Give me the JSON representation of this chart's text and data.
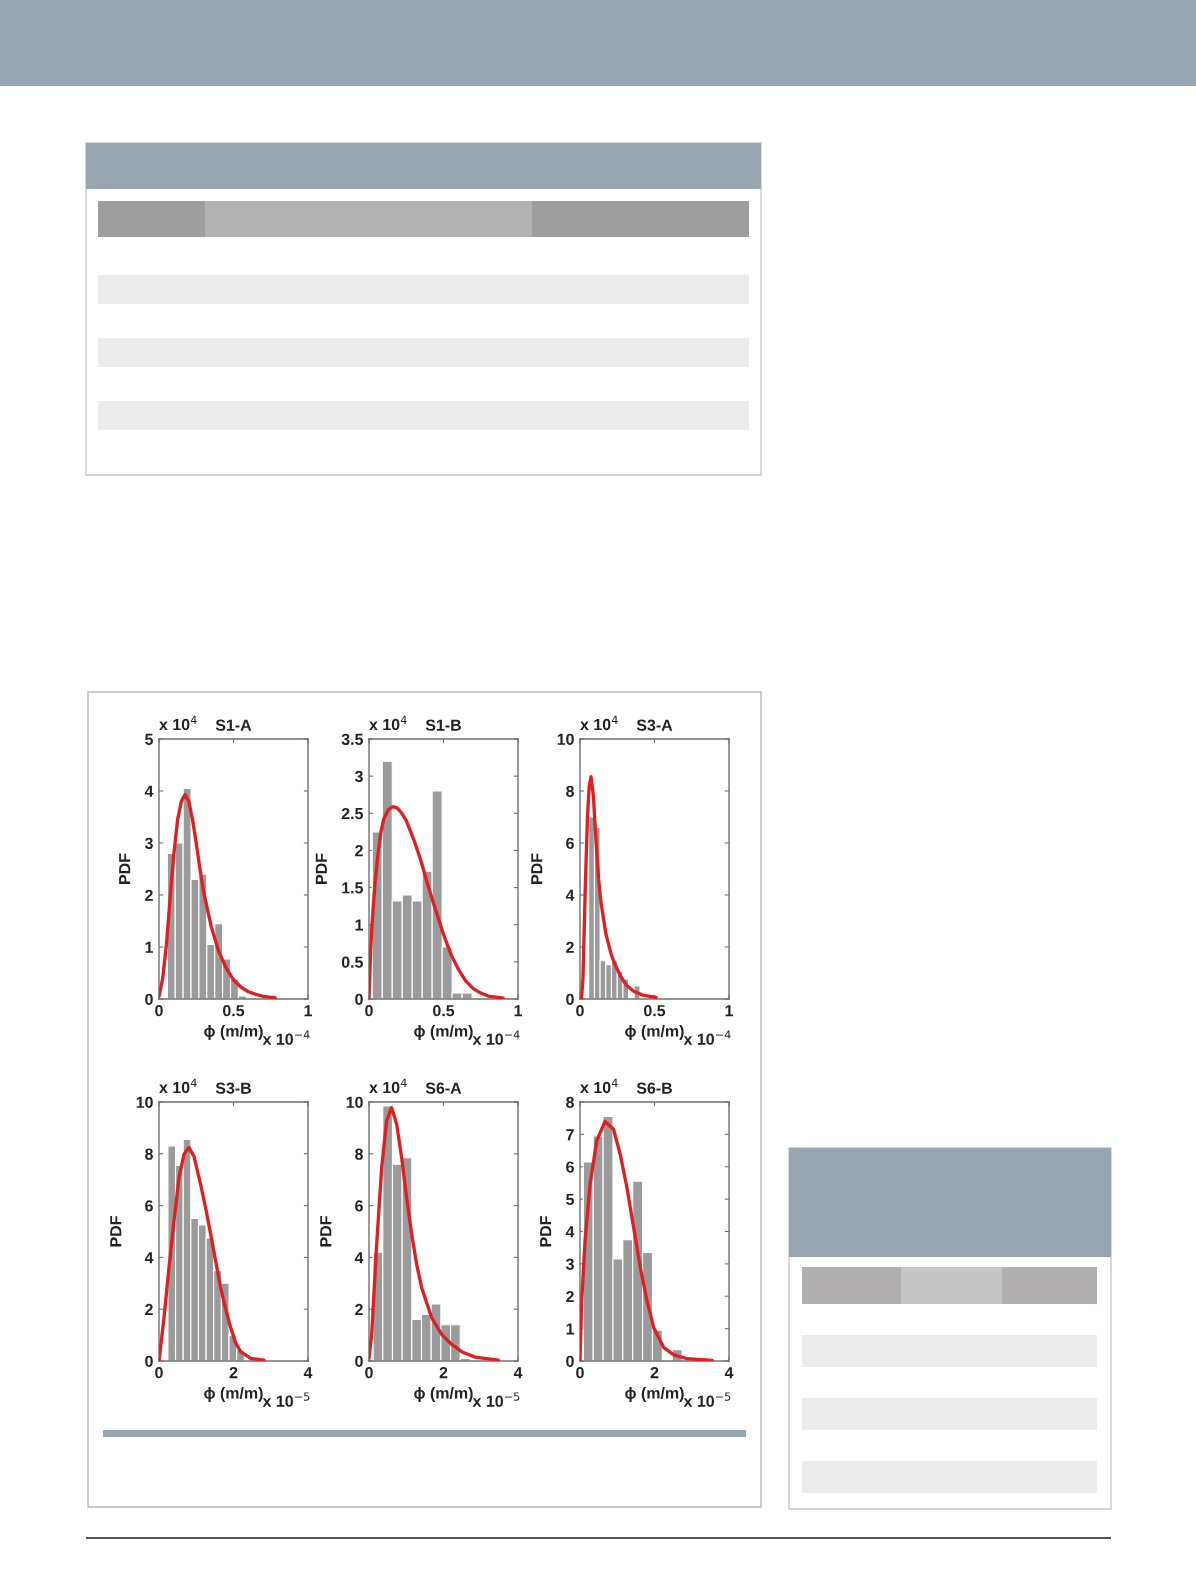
{
  "chart_data": [
    {
      "type": "histogram",
      "title": "S1-A",
      "xlabel": "ϕ (m/m)",
      "ylabel": "PDF",
      "annotations": [
        "x 10$^{4}$",
        "x 10$^{−4}$"
      ],
      "bins": [
        0.056,
        0.109,
        0.162,
        0.215,
        0.268,
        0.321,
        0.374,
        0.427,
        0.48,
        0.533,
        0.586
      ],
      "values": [
        2.8,
        3.0,
        4.05,
        2.3,
        2.4,
        1.05,
        1.45,
        0.77,
        0.38,
        0.06
      ],
      "color": "#9b9b9b",
      "series": [
        {
          "type": "line",
          "color": "#e02020",
          "x": [
            0,
            0.025,
            0.05,
            0.075,
            0.1,
            0.125,
            0.15,
            0.175,
            0.2,
            0.225,
            0.25,
            0.275,
            0.3,
            0.35,
            0.4,
            0.45,
            0.5,
            0.55,
            0.6,
            0.65,
            0.7,
            0.78
          ],
          "values": [
            0.05,
            0.4,
            1.05,
            1.95,
            2.8,
            3.45,
            3.8,
            3.93,
            3.8,
            3.45,
            3.0,
            2.5,
            2.05,
            1.4,
            0.92,
            0.6,
            0.37,
            0.23,
            0.14,
            0.09,
            0.05,
            0.02
          ]
        }
      ],
      "xlim": [
        0,
        1
      ],
      "xticks": [
        0,
        0.5,
        1
      ],
      "ylim": [
        0,
        5
      ],
      "yticks": [
        0,
        1,
        2,
        3,
        4,
        5
      ]
    },
    {
      "type": "histogram",
      "title": "S1-B",
      "xlabel": "ϕ (m/m)",
      "ylabel": "PDF",
      "annotations": [
        "x 10$^{4}$",
        "x 10$^{−4}$"
      ],
      "bins": [
        0.022,
        0.089,
        0.156,
        0.223,
        0.29,
        0.357,
        0.424,
        0.491,
        0.558,
        0.625,
        0.692
      ],
      "values": [
        2.25,
        3.2,
        1.32,
        1.4,
        1.32,
        1.72,
        2.8,
        0.7,
        0.08,
        0.08
      ],
      "color": "#9b9b9b",
      "series": [
        {
          "type": "line",
          "color": "#e02020",
          "x": [
            0,
            0.01,
            0.02,
            0.04,
            0.06,
            0.08,
            0.1,
            0.13,
            0.16,
            0.19,
            0.22,
            0.25,
            0.3,
            0.35,
            0.4,
            0.45,
            0.5,
            0.55,
            0.6,
            0.65,
            0.7,
            0.75,
            0.8,
            0.9
          ],
          "values": [
            0,
            0.6,
            1.0,
            1.55,
            1.95,
            2.25,
            2.43,
            2.55,
            2.59,
            2.57,
            2.5,
            2.4,
            2.15,
            1.85,
            1.5,
            1.18,
            0.87,
            0.6,
            0.4,
            0.24,
            0.14,
            0.08,
            0.04,
            0.01
          ]
        }
      ],
      "xlim": [
        0,
        1
      ],
      "xticks": [
        0,
        0.5,
        1
      ],
      "ylim": [
        0,
        3.5
      ],
      "yticks": [
        0,
        0.5,
        1,
        1.5,
        2,
        2.5,
        3,
        3.5
      ]
    },
    {
      "type": "histogram",
      "title": "S3-A",
      "xlabel": "ϕ (m/m)",
      "ylabel": "PDF",
      "annotations": [
        "x 10$^{4}$",
        "x 10$^{−4}$"
      ],
      "bins": [
        0.02,
        0.058,
        0.097,
        0.135,
        0.173,
        0.211,
        0.25,
        0.288,
        0.326,
        0.364,
        0.403
      ],
      "values": [
        null,
        7.0,
        6.6,
        1.47,
        1.32,
        1.47,
        1.05,
        0.77,
        0,
        0.5
      ],
      "color": "#9b9b9b",
      "series": [
        {
          "type": "line",
          "color": "#e02020",
          "x": [
            0.01,
            0.02,
            0.035,
            0.05,
            0.062,
            0.074,
            0.09,
            0.107,
            0.125,
            0.141,
            0.174,
            0.21,
            0.242,
            0.275,
            0.309,
            0.36,
            0.42,
            0.51
          ],
          "values": [
            0,
            0.8,
            4.2,
            7.0,
            8.2,
            8.55,
            7.8,
            6.1,
            4.6,
            3.7,
            2.5,
            1.7,
            1.24,
            0.85,
            0.54,
            0.3,
            0.15,
            0.06
          ]
        }
      ],
      "xlim": [
        0,
        1
      ],
      "xticks": [
        0,
        0.5,
        1
      ],
      "ylim": [
        0,
        10
      ],
      "yticks": [
        0,
        2,
        4,
        6,
        8,
        10
      ]
    },
    {
      "type": "histogram",
      "title": "S3-B",
      "xlabel": "ϕ (m/m)",
      "ylabel": "PDF",
      "annotations": [
        "x 10$^{4}$",
        "x 10$^{−5}$"
      ],
      "bins": [
        0.24,
        0.445,
        0.65,
        0.855,
        1.06,
        1.265,
        1.47,
        1.675,
        1.88,
        2.085,
        2.29
      ],
      "values": [
        8.3,
        7.55,
        8.55,
        5.5,
        5.25,
        4.75,
        3.5,
        3.0,
        1.0,
        0.4
      ],
      "color": "#9b9b9b",
      "series": [
        {
          "type": "line",
          "color": "#e02020",
          "x": [
            0,
            0.134,
            0.268,
            0.403,
            0.537,
            0.671,
            0.805,
            0.94,
            1.119,
            1.253,
            1.387,
            1.521,
            1.655,
            1.79,
            1.924,
            2.058,
            2.19,
            2.46,
            2.82
          ],
          "values": [
            0,
            1.67,
            3.6,
            5.4,
            7.08,
            7.98,
            8.24,
            7.9,
            6.8,
            5.9,
            4.9,
            3.86,
            2.83,
            2.0,
            1.29,
            0.7,
            0.36,
            0.1,
            0.03
          ]
        }
      ],
      "xlim": [
        0,
        4
      ],
      "xticks": [
        0,
        2,
        4
      ],
      "ylim": [
        0,
        10
      ],
      "yticks": [
        0,
        2,
        4,
        6,
        8,
        10
      ]
    },
    {
      "type": "histogram",
      "title": "S6-A",
      "xlabel": "ϕ (m/m)",
      "ylabel": "PDF",
      "annotations": [
        "x 10$^{4}$",
        "x 10$^{−5}$"
      ],
      "bins": [
        0.11,
        0.37,
        0.63,
        0.89,
        1.15,
        1.41,
        1.67,
        1.93,
        2.19,
        2.45,
        2.71
      ],
      "values": [
        4.2,
        9.85,
        7.6,
        7.85,
        1.6,
        1.8,
        2.2,
        1.4,
        1.4,
        0.1
      ],
      "color": "#9b9b9b",
      "series": [
        {
          "type": "line",
          "color": "#e02020",
          "x": [
            0,
            0.072,
            0.206,
            0.34,
            0.474,
            0.608,
            0.743,
            0.877,
            1.011,
            1.145,
            1.28,
            1.414,
            1.682,
            1.951,
            2.219,
            2.488,
            2.846,
            3.472
          ],
          "values": [
            0.1,
            1.03,
            4.5,
            7.46,
            9.27,
            9.78,
            9.14,
            7.85,
            6.3,
            4.9,
            3.73,
            2.83,
            1.67,
            1.03,
            0.64,
            0.36,
            0.15,
            0.03
          ]
        }
      ],
      "xlim": [
        0,
        4
      ],
      "xticks": [
        0,
        2,
        4
      ],
      "ylim": [
        0,
        10
      ],
      "yticks": [
        0,
        2,
        4,
        6,
        8,
        10
      ]
    },
    {
      "type": "histogram",
      "title": "S6-B",
      "xlabel": "ϕ (m/m)",
      "ylabel": "PDF",
      "annotations": [
        "x 10$^{4}$",
        "x 10$^{−5}$"
      ],
      "bins": [
        0.09,
        0.355,
        0.62,
        0.885,
        1.15,
        1.415,
        1.68,
        1.945,
        2.21,
        2.475,
        2.74
      ],
      "values": [
        6.15,
        6.95,
        7.55,
        3.15,
        3.75,
        5.55,
        3.35,
        0.95,
        0,
        0.35
      ],
      "color": "#9b9b9b",
      "series": [
        {
          "type": "line",
          "color": "#e02020",
          "x": [
            0,
            0.045,
            0.135,
            0.27,
            0.45,
            0.67,
            0.9,
            1.08,
            1.26,
            1.44,
            1.62,
            1.8,
            1.98,
            2.25,
            2.52,
            2.88,
            3.55
          ],
          "values": [
            0,
            1.85,
            3.7,
            5.46,
            6.8,
            7.4,
            7.16,
            6.38,
            5.36,
            4.12,
            2.88,
            1.85,
            1.03,
            0.41,
            0.19,
            0.07,
            0.02
          ]
        }
      ],
      "xlim": [
        0,
        4
      ],
      "xticks": [
        0,
        2,
        4
      ],
      "ylim": [
        0,
        8
      ],
      "yticks": [
        0,
        1,
        2,
        3,
        4,
        5,
        6,
        7,
        8
      ]
    }
  ]
}
